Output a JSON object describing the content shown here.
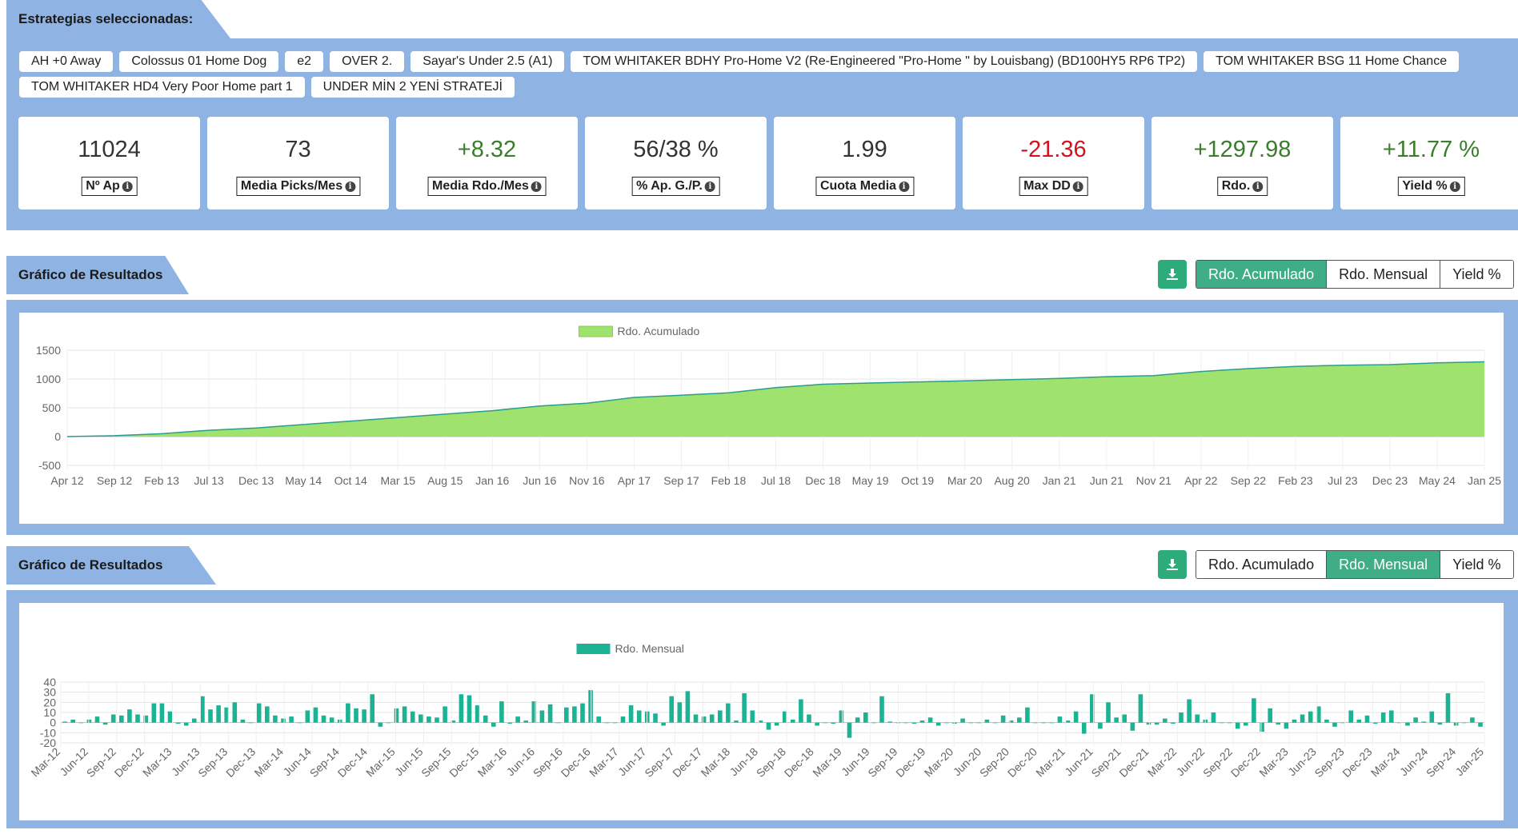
{
  "header": {
    "title": "Estrategias seleccionadas:"
  },
  "strategies": [
    "AH +0 Away",
    "Colossus 01 Home Dog",
    "e2",
    "OVER 2.",
    "Sayar's Under 2.5 (A1)",
    "TOM WHITAKER BDHY Pro-Home V2 (Re-Engineered \"Pro-Home \" by Louisbang) (BD100HY5 RP6 TP2)",
    "TOM WHITAKER BSG 11 Home Chance",
    "TOM WHITAKER HD4 Very Poor Home part 1",
    "UNDER MİN 2 YENİ STRATEJİ"
  ],
  "stats": [
    {
      "value": "11024",
      "label": "Nº Ap",
      "tone": "neutral"
    },
    {
      "value": "73",
      "label": "Media Picks/Mes",
      "tone": "neutral"
    },
    {
      "value": "+8.32",
      "label": "Media Rdo./Mes",
      "tone": "pos"
    },
    {
      "value": "56/38 %",
      "label": "% Ap. G./P.",
      "tone": "neutral"
    },
    {
      "value": "1.99",
      "label": "Cuota Media",
      "tone": "neutral"
    },
    {
      "value": "-21.36",
      "label": "Max DD",
      "tone": "neg"
    },
    {
      "value": "+1297.98",
      "label": "Rdo.",
      "tone": "pos"
    },
    {
      "value": "+11.77 %",
      "label": "Yield %",
      "tone": "pos"
    }
  ],
  "chart1": {
    "section_title": "Gráfico de Resultados",
    "download_icon": "download-icon",
    "tabs": [
      "Rdo. Acumulado",
      "Rdo. Mensual",
      "Yield %"
    ],
    "active_tab": 0
  },
  "chart2": {
    "section_title": "Gráfico de Resultados",
    "download_icon": "download-icon",
    "tabs": [
      "Rdo. Acumulado",
      "Rdo. Mensual",
      "Yield %"
    ],
    "active_tab": 1
  },
  "colors": {
    "panel": "#8fb4e3",
    "accent_button": "#2dab7b",
    "area_fill": "#a0e26e",
    "area_line": "#2a9d8f",
    "bar": "#1cb394",
    "positive": "#3a7d2c",
    "negative": "#d3121f"
  },
  "chart_data": [
    {
      "type": "area",
      "title": "",
      "legend": "Rdo. Acumulado",
      "legend_position": "top-center",
      "ylim": [
        -500,
        1500
      ],
      "yticks": [
        -500,
        0,
        500,
        1000,
        1500
      ],
      "xticks": [
        "Apr 12",
        "Sep 12",
        "Feb 13",
        "Jul 13",
        "Dec 13",
        "May 14",
        "Oct 14",
        "Mar 15",
        "Aug 15",
        "Jan 16",
        "Jun 16",
        "Nov 16",
        "Apr 17",
        "Sep 17",
        "Feb 18",
        "Jul 18",
        "Dec 18",
        "May 19",
        "Oct 19",
        "Mar 20",
        "Aug 20",
        "Jan 21",
        "Jun 21",
        "Nov 21",
        "Apr 22",
        "Sep 22",
        "Feb 23",
        "Jul 23",
        "Dec 23",
        "May 24",
        "Jan 25"
      ],
      "x": [
        "Apr 12",
        "Sep 12",
        "Feb 13",
        "Jul 13",
        "Dec 13",
        "May 14",
        "Oct 14",
        "Mar 15",
        "Aug 15",
        "Jan 16",
        "Jun 16",
        "Nov 16",
        "Apr 17",
        "Sep 17",
        "Feb 18",
        "Jul 18",
        "Dec 18",
        "May 19",
        "Oct 19",
        "Mar 20",
        "Aug 20",
        "Jan 21",
        "Jun 21",
        "Nov 21",
        "Apr 22",
        "Sep 22",
        "Feb 23",
        "Jul 23",
        "Dec 23",
        "May 24",
        "Jan 25"
      ],
      "y": [
        0,
        15,
        50,
        110,
        150,
        210,
        270,
        330,
        390,
        450,
        530,
        580,
        680,
        720,
        760,
        850,
        910,
        930,
        950,
        970,
        990,
        1010,
        1040,
        1060,
        1130,
        1180,
        1220,
        1240,
        1250,
        1280,
        1298
      ],
      "grid": true
    },
    {
      "type": "bar",
      "title": "",
      "legend": "Rdo. Mensual",
      "legend_position": "top-center",
      "ylim": [
        -20,
        40
      ],
      "yticks": [
        -20,
        -10,
        0,
        10,
        20,
        30,
        40
      ],
      "xticks": [
        "Mar-12",
        "Jun-12",
        "Sep-12",
        "Dec-12",
        "Mar-13",
        "Jun-13",
        "Sep-13",
        "Dec-13",
        "Mar-14",
        "Jun-14",
        "Sep-14",
        "Dec-14",
        "Mar-15",
        "Jun-15",
        "Sep-15",
        "Dec-15",
        "Mar-16",
        "Jun-16",
        "Sep-16",
        "Dec-16",
        "Mar-17",
        "Jun-17",
        "Sep-17",
        "Dec-17",
        "Mar-18",
        "Jun-18",
        "Sep-18",
        "Dec-18",
        "Mar-19",
        "Jun-19",
        "Sep-19",
        "Dec-19",
        "Mar-20",
        "Jun-20",
        "Sep-20",
        "Dec-20",
        "Mar-21",
        "Jun-21",
        "Sep-21",
        "Dec-21",
        "Mar-22",
        "Jun-22",
        "Sep-22",
        "Dec-22",
        "Mar-23",
        "Jun-23",
        "Sep-23",
        "Dec-23",
        "Mar-24",
        "Jun-24",
        "Sep-24",
        "Jan-25"
      ],
      "values": [
        1,
        3,
        0,
        3,
        6,
        -2,
        8,
        7,
        13,
        8,
        7,
        19,
        19,
        11,
        -1,
        -3,
        4,
        26,
        13,
        17,
        15,
        20,
        3,
        0,
        19,
        16,
        7,
        4,
        6,
        0,
        12,
        15,
        7,
        5,
        3,
        19,
        14,
        13,
        28,
        -4,
        0,
        14,
        16,
        11,
        8,
        6,
        5,
        16,
        2,
        28,
        27,
        17,
        7,
        -4,
        21,
        -1,
        6,
        2,
        21,
        12,
        18,
        0,
        15,
        16,
        19,
        32,
        6,
        0,
        0,
        6,
        17,
        12,
        11,
        9,
        -3,
        26,
        20,
        31,
        8,
        6,
        8,
        12,
        19,
        2,
        29,
        12,
        2,
        -7,
        -3,
        11,
        3,
        23,
        8,
        -3,
        0,
        -1,
        12,
        -15,
        5,
        10,
        0,
        26,
        1,
        0,
        0,
        -1,
        2,
        5,
        -3,
        0,
        -1,
        4,
        0,
        0,
        3,
        0,
        7,
        2,
        5,
        15,
        0,
        0,
        0,
        6,
        2,
        11,
        -11,
        28,
        -6,
        20,
        5,
        8,
        -8,
        28,
        -2,
        -2,
        4,
        -1,
        10,
        23,
        8,
        3,
        10,
        0,
        0,
        -6,
        -3,
        24,
        -9,
        14,
        -2,
        -6,
        3,
        8,
        11,
        16,
        3,
        -4,
        0,
        12,
        3,
        7,
        -1,
        10,
        12,
        0,
        -3,
        5,
        1,
        11,
        -2,
        29,
        -3,
        0,
        5,
        -4
      ]
    }
  ]
}
